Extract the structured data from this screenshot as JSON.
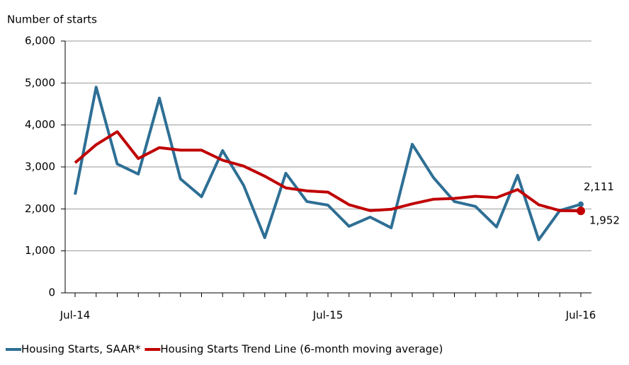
{
  "chart_data": {
    "type": "line",
    "y_axis_label": "Number of starts",
    "categories": [
      "Jul-14",
      null,
      null,
      null,
      null,
      null,
      null,
      null,
      null,
      null,
      null,
      null,
      "Jul-15",
      null,
      null,
      null,
      null,
      null,
      null,
      null,
      null,
      null,
      null,
      null,
      "Jul-16"
    ],
    "series": [
      {
        "name": "Housing Starts, SAAR*",
        "color": "#2e6f95",
        "values": [
          2340,
          4900,
          3070,
          2830,
          4640,
          2715,
          2290,
          3390,
          2560,
          1315,
          2850,
          2175,
          2090,
          1585,
          1805,
          1550,
          3540,
          2750,
          2175,
          2060,
          1570,
          2800,
          1265,
          1960,
          2111
        ],
        "value_labels": [
          null,
          null,
          null,
          null,
          null,
          null,
          null,
          null,
          null,
          null,
          null,
          null,
          null,
          null,
          null,
          null,
          null,
          null,
          null,
          null,
          null,
          null,
          null,
          null,
          "2,111"
        ]
      },
      {
        "name": "Housing Starts Trend Line (6-month moving average)",
        "color": "#c00000",
        "values": [
          3100,
          3530,
          3840,
          3200,
          3460,
          3400,
          3400,
          3160,
          3020,
          2780,
          2500,
          2430,
          2400,
          2100,
          1960,
          1990,
          2120,
          2230,
          2250,
          2300,
          2270,
          2460,
          2100,
          1960,
          1952
        ],
        "value_labels": [
          null,
          null,
          null,
          null,
          null,
          null,
          null,
          null,
          null,
          null,
          null,
          null,
          null,
          null,
          null,
          null,
          null,
          null,
          null,
          null,
          null,
          null,
          null,
          null,
          "1,952"
        ]
      }
    ],
    "ylim": [
      0,
      6000
    ],
    "yticks": [
      0,
      {
        "value": 1000,
        "label": "1,000"
      },
      {
        "value": 2000,
        "label": "2,000"
      },
      {
        "value": 3000,
        "label": "3,000"
      },
      {
        "value": 4000,
        "label": "4,000"
      },
      {
        "value": 5000,
        "label": "5,000"
      },
      {
        "value": 6000,
        "label": "6,000"
      }
    ],
    "grid": true,
    "legend": "bottom"
  }
}
